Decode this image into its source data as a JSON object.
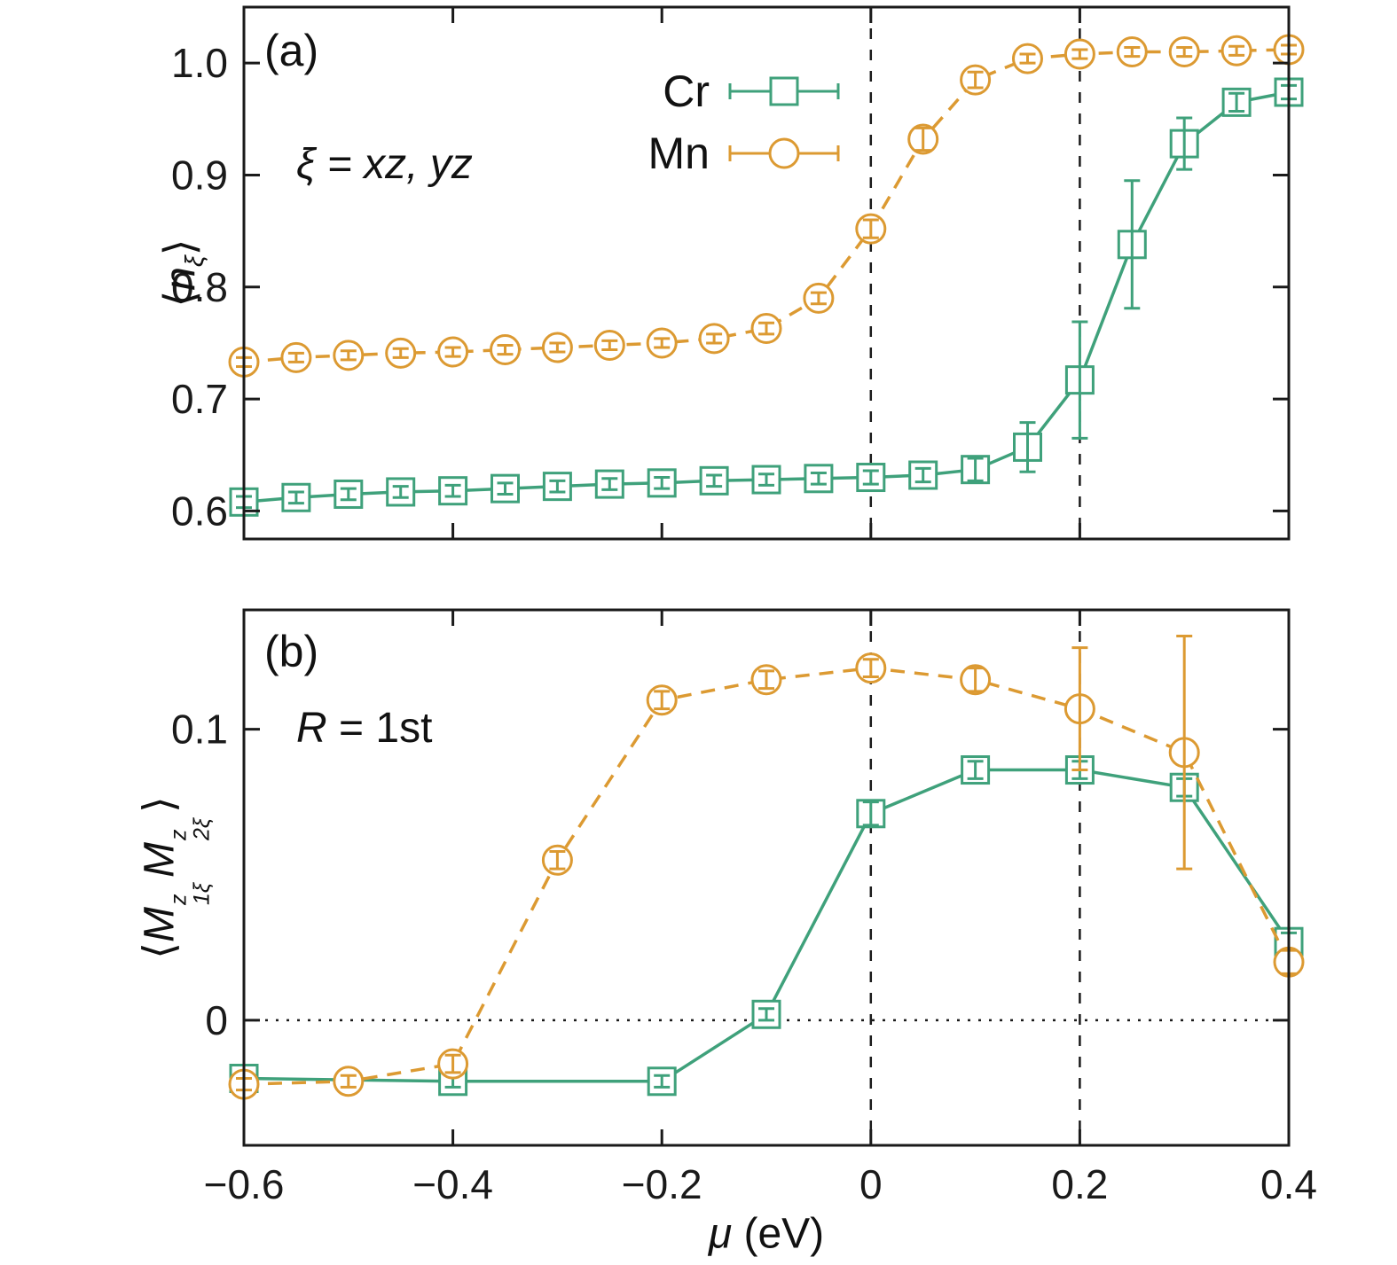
{
  "figure": {
    "panel_a_label": "(a)",
    "panel_b_label": "(b)",
    "panel_a_annotation": "ξ = xz, yz",
    "panel_b_annotation_R": "R",
    "panel_b_annotation_rest": " = 1st",
    "xlabel_mu": "μ",
    "xlabel_rest": " (eV)"
  },
  "ylabel_a": {
    "pre": "⟨",
    "main": "n",
    "sub": "ξ",
    "post": "⟩"
  },
  "ylabel_b": {
    "pre": "⟨",
    "m1": "M",
    "sup1": "z",
    "sub1": "1ξ",
    "m2": "M",
    "sup2": "z",
    "sub2": "2ξ",
    "post": "⟩"
  },
  "legend": {
    "entries": [
      {
        "label": "Cr",
        "series": "cr",
        "marker": "square",
        "line": "solid"
      },
      {
        "label": "Mn",
        "series": "mn",
        "marker": "circle",
        "line": "dashed"
      }
    ]
  },
  "colors": {
    "cr": "#3fa17b",
    "mn": "#dc9a32",
    "axis": "#1a1a1a",
    "background": "#ffffff"
  },
  "chart_data": [
    {
      "id": "a",
      "type": "line",
      "title": "",
      "xlabel": "μ (eV)",
      "ylabel": "⟨n_ξ⟩",
      "annotation": "ξ = xz, yz",
      "xlim": [
        -0.6,
        0.4
      ],
      "ylim": [
        0.575,
        1.05
      ],
      "xticks": [
        -0.6,
        -0.4,
        -0.2,
        0,
        0.2,
        0.4
      ],
      "xtick_labels": [
        "−0.6",
        "−0.4",
        "−0.2",
        "0",
        "0.2",
        "0.4"
      ],
      "show_xtick_labels": false,
      "yticks": [
        0.6,
        0.7,
        0.8,
        0.9,
        1.0
      ],
      "ytick_labels": [
        "0.6",
        "0.7",
        "0.8",
        "0.9",
        "1.0"
      ],
      "vlines": [
        0,
        0.2
      ],
      "hlines": [],
      "legend_position": "upper center inside",
      "grid": false,
      "series": [
        {
          "name": "Cr",
          "color_key": "cr",
          "line": "solid",
          "marker": "square",
          "x": [
            -0.6,
            -0.55,
            -0.5,
            -0.45,
            -0.4,
            -0.35,
            -0.3,
            -0.25,
            -0.2,
            -0.15,
            -0.1,
            -0.05,
            0,
            0.05,
            0.1,
            0.15,
            0.2,
            0.25,
            0.3,
            0.35,
            0.4
          ],
          "y": [
            0.608,
            0.612,
            0.615,
            0.617,
            0.618,
            0.62,
            0.622,
            0.624,
            0.625,
            0.627,
            0.628,
            0.629,
            0.63,
            0.632,
            0.637,
            0.657,
            0.717,
            0.838,
            0.928,
            0.965,
            0.974
          ],
          "yerr": [
            0.005,
            0.005,
            0.005,
            0.005,
            0.005,
            0.005,
            0.005,
            0.005,
            0.005,
            0.005,
            0.005,
            0.005,
            0.006,
            0.006,
            0.01,
            0.022,
            0.052,
            0.057,
            0.023,
            0.008,
            0.006
          ]
        },
        {
          "name": "Mn",
          "color_key": "mn",
          "line": "dashed",
          "marker": "circle",
          "x": [
            -0.6,
            -0.55,
            -0.5,
            -0.45,
            -0.4,
            -0.35,
            -0.3,
            -0.25,
            -0.2,
            -0.15,
            -0.1,
            -0.05,
            0,
            0.05,
            0.1,
            0.15,
            0.2,
            0.25,
            0.3,
            0.35,
            0.4
          ],
          "y": [
            0.733,
            0.737,
            0.739,
            0.741,
            0.742,
            0.744,
            0.746,
            0.748,
            0.75,
            0.754,
            0.763,
            0.79,
            0.852,
            0.932,
            0.985,
            1.004,
            1.008,
            1.01,
            1.01,
            1.011,
            1.012
          ],
          "yerr": [
            0.004,
            0.004,
            0.004,
            0.004,
            0.004,
            0.004,
            0.004,
            0.004,
            0.004,
            0.004,
            0.005,
            0.005,
            0.008,
            0.01,
            0.007,
            0.004,
            0.004,
            0.004,
            0.004,
            0.004,
            0.004
          ]
        }
      ]
    },
    {
      "id": "b",
      "type": "line",
      "title": "",
      "xlabel": "μ (eV)",
      "ylabel": "⟨M^z_1ξ M^z_2ξ⟩",
      "annotation": "R = 1st",
      "xlim": [
        -0.6,
        0.4
      ],
      "ylim": [
        -0.043,
        0.141
      ],
      "xticks": [
        -0.6,
        -0.4,
        -0.2,
        0,
        0.2,
        0.4
      ],
      "xtick_labels": [
        "−0.6",
        "−0.4",
        "−0.2",
        "0",
        "0.2",
        "0.4"
      ],
      "show_xtick_labels": true,
      "yticks": [
        0,
        0.1
      ],
      "ytick_labels": [
        "0",
        "0.1"
      ],
      "vlines": [
        0,
        0.2
      ],
      "hlines": [
        0
      ],
      "legend_position": "none",
      "grid": false,
      "series": [
        {
          "name": "Cr",
          "color_key": "cr",
          "line": "solid",
          "marker": "square",
          "x": [
            -0.6,
            -0.4,
            -0.2,
            -0.1,
            0,
            0.1,
            0.2,
            0.3,
            0.4
          ],
          "y": [
            -0.02,
            -0.021,
            -0.021,
            0.002,
            0.071,
            0.086,
            0.086,
            0.08,
            0.027
          ],
          "yerr": [
            0.002,
            0.002,
            0.002,
            0.002,
            0.004,
            0.003,
            0.003,
            0.003,
            0.003
          ]
        },
        {
          "name": "Mn",
          "color_key": "mn",
          "line": "dashed",
          "marker": "circle",
          "x": [
            -0.6,
            -0.5,
            -0.4,
            -0.3,
            -0.2,
            -0.1,
            0,
            0.1,
            0.2,
            0.3,
            0.4
          ],
          "y": [
            -0.022,
            -0.021,
            -0.015,
            0.055,
            0.11,
            0.117,
            0.121,
            0.117,
            0.107,
            0.092,
            0.02
          ],
          "yerr": [
            0.002,
            0.002,
            0.003,
            0.003,
            0.003,
            0.003,
            0.003,
            0.004,
            0.021,
            0.04,
            0.004
          ]
        }
      ]
    }
  ]
}
